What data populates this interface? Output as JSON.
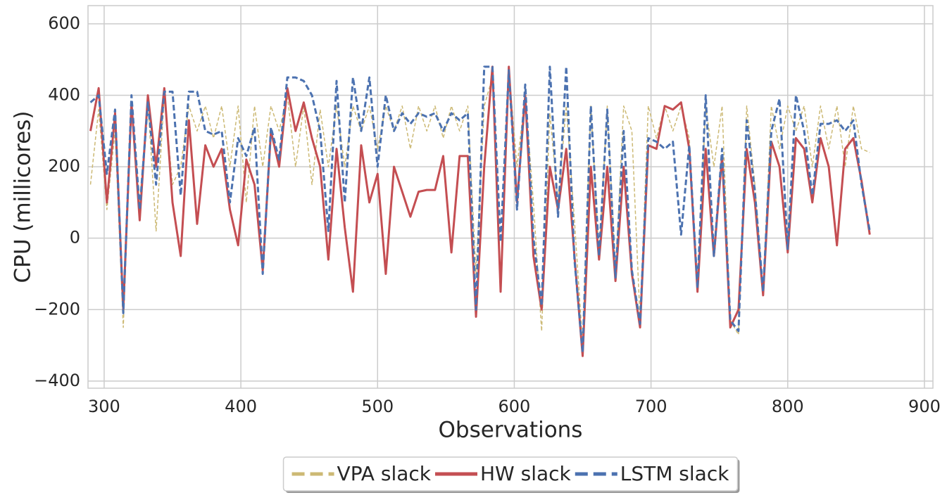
{
  "chart_data": {
    "type": "line",
    "xlabel": "Observations",
    "ylabel": "CPU (millicores)",
    "xlim": [
      288.2,
      906.2
    ],
    "ylim": [
      -420,
      651
    ],
    "xticks": [
      300,
      400,
      500,
      600,
      700,
      800,
      900
    ],
    "yticks": [
      {
        "value": -400,
        "label": "−400"
      },
      {
        "value": -200,
        "label": "−200"
      },
      0,
      200,
      400,
      600
    ],
    "grid": true,
    "legend": "lower center",
    "x": [
      290,
      296,
      302,
      308,
      314,
      320,
      326,
      332,
      338,
      344,
      350,
      356,
      362,
      368,
      374,
      380,
      386,
      392,
      398,
      404,
      410,
      416,
      422,
      428,
      434,
      440,
      446,
      452,
      458,
      464,
      470,
      476,
      482,
      488,
      494,
      500,
      506,
      512,
      518,
      524,
      530,
      536,
      542,
      548,
      554,
      560,
      566,
      572,
      578,
      584,
      590,
      596,
      602,
      608,
      614,
      620,
      626,
      632,
      638,
      644,
      650,
      656,
      662,
      668,
      674,
      680,
      686,
      692,
      698,
      704,
      710,
      716,
      722,
      728,
      734,
      740,
      746,
      752,
      758,
      764,
      770,
      776,
      782,
      788,
      794,
      800,
      806,
      812,
      818,
      824,
      830,
      836,
      842,
      848,
      854,
      860
    ],
    "series": [
      {
        "name": "VPA slack",
        "color": "#ccb974",
        "linestyle": "dashed",
        "values": [
          150,
          360,
          80,
          300,
          -250,
          350,
          100,
          380,
          20,
          400,
          150,
          200,
          370,
          300,
          370,
          280,
          370,
          200,
          370,
          100,
          370,
          200,
          370,
          300,
          400,
          200,
          370,
          150,
          360,
          200,
          370,
          200,
          370,
          300,
          370,
          250,
          370,
          300,
          370,
          250,
          370,
          300,
          370,
          280,
          370,
          300,
          370,
          -100,
          370,
          450,
          -120,
          470,
          200,
          400,
          100,
          -260,
          350,
          100,
          370,
          50,
          -300,
          370,
          -50,
          370,
          -100,
          370,
          300,
          -230,
          370,
          280,
          370,
          300,
          370,
          280,
          -150,
          370,
          200,
          370,
          -230,
          -270,
          370,
          150,
          -150,
          370,
          250,
          370,
          300,
          370,
          200,
          370,
          250,
          370,
          200,
          370,
          250,
          240
        ]
      },
      {
        "name": "HW slack",
        "color": "#c44e52",
        "linestyle": "solid",
        "values": [
          300,
          420,
          100,
          350,
          -200,
          380,
          50,
          400,
          200,
          420,
          100,
          -50,
          330,
          40,
          260,
          200,
          250,
          80,
          -20,
          220,
          150,
          -90,
          300,
          200,
          420,
          300,
          380,
          280,
          200,
          -60,
          250,
          30,
          -150,
          260,
          100,
          180,
          -100,
          200,
          130,
          60,
          130,
          135,
          135,
          230,
          -40,
          230,
          230,
          -220,
          200,
          480,
          -150,
          480,
          100,
          400,
          -50,
          -200,
          200,
          80,
          250,
          -50,
          -330,
          200,
          -60,
          200,
          -120,
          200,
          -100,
          -250,
          260,
          250,
          370,
          360,
          380,
          250,
          -150,
          250,
          -50,
          230,
          -250,
          -200,
          250,
          100,
          -160,
          270,
          200,
          -40,
          280,
          250,
          100,
          280,
          200,
          -20,
          250,
          280,
          160,
          10
        ]
      },
      {
        "name": "LSTM slack",
        "color": "#4c72b0",
        "linestyle": "dashed",
        "values": [
          380,
          400,
          180,
          360,
          -210,
          400,
          80,
          380,
          150,
          410,
          410,
          120,
          410,
          410,
          300,
          290,
          300,
          100,
          280,
          230,
          310,
          -100,
          310,
          220,
          450,
          450,
          440,
          400,
          300,
          20,
          440,
          100,
          450,
          300,
          450,
          200,
          400,
          300,
          350,
          320,
          350,
          340,
          350,
          300,
          350,
          330,
          350,
          -200,
          480,
          480,
          -10,
          470,
          80,
          430,
          0,
          -190,
          480,
          60,
          480,
          -60,
          -320,
          370,
          -50,
          360,
          -110,
          300,
          -90,
          -240,
          280,
          270,
          250,
          270,
          10,
          260,
          -140,
          400,
          -50,
          250,
          -230,
          -260,
          330,
          130,
          -150,
          300,
          390,
          -30,
          400,
          300,
          120,
          320,
          320,
          330,
          300,
          330,
          150,
          20
        ]
      }
    ]
  }
}
